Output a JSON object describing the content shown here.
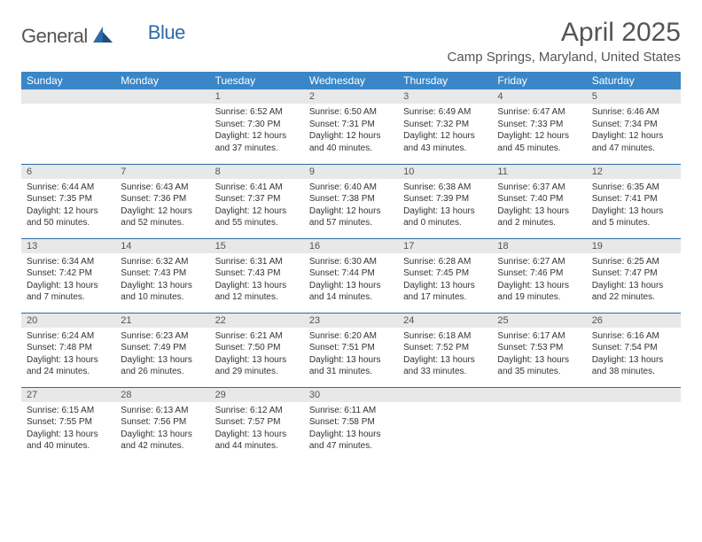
{
  "logo": {
    "text1": "General",
    "text2": "Blue",
    "color1": "#555555",
    "color2": "#2d6aa8"
  },
  "title": "April 2025",
  "location": "Camp Springs, Maryland, United States",
  "colors": {
    "header_bg": "#3a86c7",
    "header_text": "#ffffff",
    "daynum_bg": "#e7e8e9",
    "divider": "#2d6aa8",
    "text": "#333333",
    "title_text": "#555555"
  },
  "weekdays": [
    "Sunday",
    "Monday",
    "Tuesday",
    "Wednesday",
    "Thursday",
    "Friday",
    "Saturday"
  ],
  "weeks": [
    [
      null,
      null,
      {
        "n": "1",
        "sunrise": "Sunrise: 6:52 AM",
        "sunset": "Sunset: 7:30 PM",
        "day1": "Daylight: 12 hours",
        "day2": "and 37 minutes."
      },
      {
        "n": "2",
        "sunrise": "Sunrise: 6:50 AM",
        "sunset": "Sunset: 7:31 PM",
        "day1": "Daylight: 12 hours",
        "day2": "and 40 minutes."
      },
      {
        "n": "3",
        "sunrise": "Sunrise: 6:49 AM",
        "sunset": "Sunset: 7:32 PM",
        "day1": "Daylight: 12 hours",
        "day2": "and 43 minutes."
      },
      {
        "n": "4",
        "sunrise": "Sunrise: 6:47 AM",
        "sunset": "Sunset: 7:33 PM",
        "day1": "Daylight: 12 hours",
        "day2": "and 45 minutes."
      },
      {
        "n": "5",
        "sunrise": "Sunrise: 6:46 AM",
        "sunset": "Sunset: 7:34 PM",
        "day1": "Daylight: 12 hours",
        "day2": "and 47 minutes."
      }
    ],
    [
      {
        "n": "6",
        "sunrise": "Sunrise: 6:44 AM",
        "sunset": "Sunset: 7:35 PM",
        "day1": "Daylight: 12 hours",
        "day2": "and 50 minutes."
      },
      {
        "n": "7",
        "sunrise": "Sunrise: 6:43 AM",
        "sunset": "Sunset: 7:36 PM",
        "day1": "Daylight: 12 hours",
        "day2": "and 52 minutes."
      },
      {
        "n": "8",
        "sunrise": "Sunrise: 6:41 AM",
        "sunset": "Sunset: 7:37 PM",
        "day1": "Daylight: 12 hours",
        "day2": "and 55 minutes."
      },
      {
        "n": "9",
        "sunrise": "Sunrise: 6:40 AM",
        "sunset": "Sunset: 7:38 PM",
        "day1": "Daylight: 12 hours",
        "day2": "and 57 minutes."
      },
      {
        "n": "10",
        "sunrise": "Sunrise: 6:38 AM",
        "sunset": "Sunset: 7:39 PM",
        "day1": "Daylight: 13 hours",
        "day2": "and 0 minutes."
      },
      {
        "n": "11",
        "sunrise": "Sunrise: 6:37 AM",
        "sunset": "Sunset: 7:40 PM",
        "day1": "Daylight: 13 hours",
        "day2": "and 2 minutes."
      },
      {
        "n": "12",
        "sunrise": "Sunrise: 6:35 AM",
        "sunset": "Sunset: 7:41 PM",
        "day1": "Daylight: 13 hours",
        "day2": "and 5 minutes."
      }
    ],
    [
      {
        "n": "13",
        "sunrise": "Sunrise: 6:34 AM",
        "sunset": "Sunset: 7:42 PM",
        "day1": "Daylight: 13 hours",
        "day2": "and 7 minutes."
      },
      {
        "n": "14",
        "sunrise": "Sunrise: 6:32 AM",
        "sunset": "Sunset: 7:43 PM",
        "day1": "Daylight: 13 hours",
        "day2": "and 10 minutes."
      },
      {
        "n": "15",
        "sunrise": "Sunrise: 6:31 AM",
        "sunset": "Sunset: 7:43 PM",
        "day1": "Daylight: 13 hours",
        "day2": "and 12 minutes."
      },
      {
        "n": "16",
        "sunrise": "Sunrise: 6:30 AM",
        "sunset": "Sunset: 7:44 PM",
        "day1": "Daylight: 13 hours",
        "day2": "and 14 minutes."
      },
      {
        "n": "17",
        "sunrise": "Sunrise: 6:28 AM",
        "sunset": "Sunset: 7:45 PM",
        "day1": "Daylight: 13 hours",
        "day2": "and 17 minutes."
      },
      {
        "n": "18",
        "sunrise": "Sunrise: 6:27 AM",
        "sunset": "Sunset: 7:46 PM",
        "day1": "Daylight: 13 hours",
        "day2": "and 19 minutes."
      },
      {
        "n": "19",
        "sunrise": "Sunrise: 6:25 AM",
        "sunset": "Sunset: 7:47 PM",
        "day1": "Daylight: 13 hours",
        "day2": "and 22 minutes."
      }
    ],
    [
      {
        "n": "20",
        "sunrise": "Sunrise: 6:24 AM",
        "sunset": "Sunset: 7:48 PM",
        "day1": "Daylight: 13 hours",
        "day2": "and 24 minutes."
      },
      {
        "n": "21",
        "sunrise": "Sunrise: 6:23 AM",
        "sunset": "Sunset: 7:49 PM",
        "day1": "Daylight: 13 hours",
        "day2": "and 26 minutes."
      },
      {
        "n": "22",
        "sunrise": "Sunrise: 6:21 AM",
        "sunset": "Sunset: 7:50 PM",
        "day1": "Daylight: 13 hours",
        "day2": "and 29 minutes."
      },
      {
        "n": "23",
        "sunrise": "Sunrise: 6:20 AM",
        "sunset": "Sunset: 7:51 PM",
        "day1": "Daylight: 13 hours",
        "day2": "and 31 minutes."
      },
      {
        "n": "24",
        "sunrise": "Sunrise: 6:18 AM",
        "sunset": "Sunset: 7:52 PM",
        "day1": "Daylight: 13 hours",
        "day2": "and 33 minutes."
      },
      {
        "n": "25",
        "sunrise": "Sunrise: 6:17 AM",
        "sunset": "Sunset: 7:53 PM",
        "day1": "Daylight: 13 hours",
        "day2": "and 35 minutes."
      },
      {
        "n": "26",
        "sunrise": "Sunrise: 6:16 AM",
        "sunset": "Sunset: 7:54 PM",
        "day1": "Daylight: 13 hours",
        "day2": "and 38 minutes."
      }
    ],
    [
      {
        "n": "27",
        "sunrise": "Sunrise: 6:15 AM",
        "sunset": "Sunset: 7:55 PM",
        "day1": "Daylight: 13 hours",
        "day2": "and 40 minutes."
      },
      {
        "n": "28",
        "sunrise": "Sunrise: 6:13 AM",
        "sunset": "Sunset: 7:56 PM",
        "day1": "Daylight: 13 hours",
        "day2": "and 42 minutes."
      },
      {
        "n": "29",
        "sunrise": "Sunrise: 6:12 AM",
        "sunset": "Sunset: 7:57 PM",
        "day1": "Daylight: 13 hours",
        "day2": "and 44 minutes."
      },
      {
        "n": "30",
        "sunrise": "Sunrise: 6:11 AM",
        "sunset": "Sunset: 7:58 PM",
        "day1": "Daylight: 13 hours",
        "day2": "and 47 minutes."
      },
      null,
      null,
      null
    ]
  ]
}
